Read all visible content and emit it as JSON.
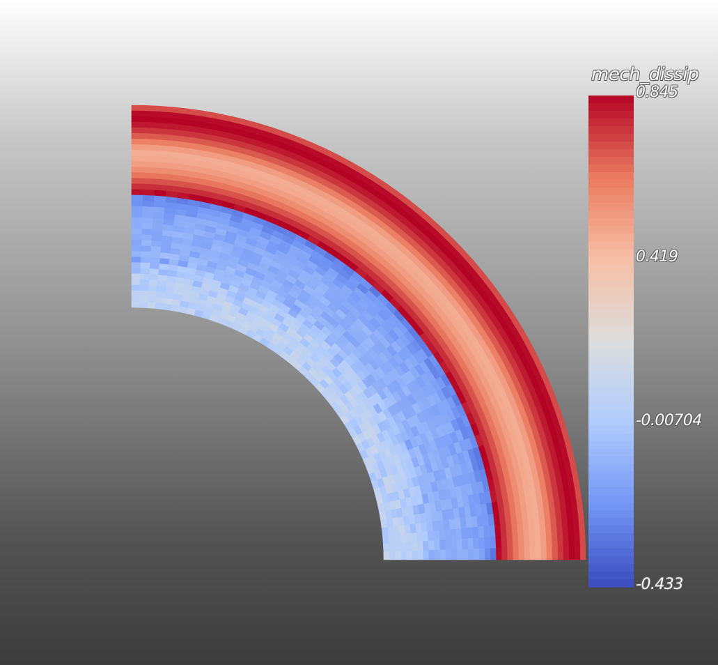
{
  "scalar_bar": {
    "title": "mech_dissip",
    "range": [
      -0.433,
      0.845
    ],
    "labels": [
      {
        "text": "0.845",
        "value": 0.845
      },
      {
        "text": "0.419",
        "value": 0.419
      },
      {
        "text": "-0.00704",
        "value": -0.00704
      },
      {
        "text": "-0.433",
        "value": -0.433
      }
    ],
    "colormap": {
      "name": "Cool to Warm",
      "stops": [
        "#3b4cc0",
        "#7396f5",
        "#b0cbfc",
        "#dcdddd",
        "#f6bfa6",
        "#ea7b60",
        "#b40426"
      ]
    }
  },
  "mesh": {
    "type": "quarter-annulus",
    "radial_profile": [
      0.9,
      0.99,
      1.0,
      0.97,
      0.93,
      0.88,
      0.82,
      0.75,
      0.71,
      0.72,
      0.75,
      0.79,
      0.84,
      0.89,
      0.94,
      0.99,
      0.13,
      0.16,
      0.19,
      0.21,
      0.22,
      0.23,
      0.24,
      0.24,
      0.24,
      0.24,
      0.26,
      0.28,
      0.31,
      0.34,
      0.37,
      0.38,
      0.39,
      0.395,
      0.4,
      0.4
    ]
  }
}
